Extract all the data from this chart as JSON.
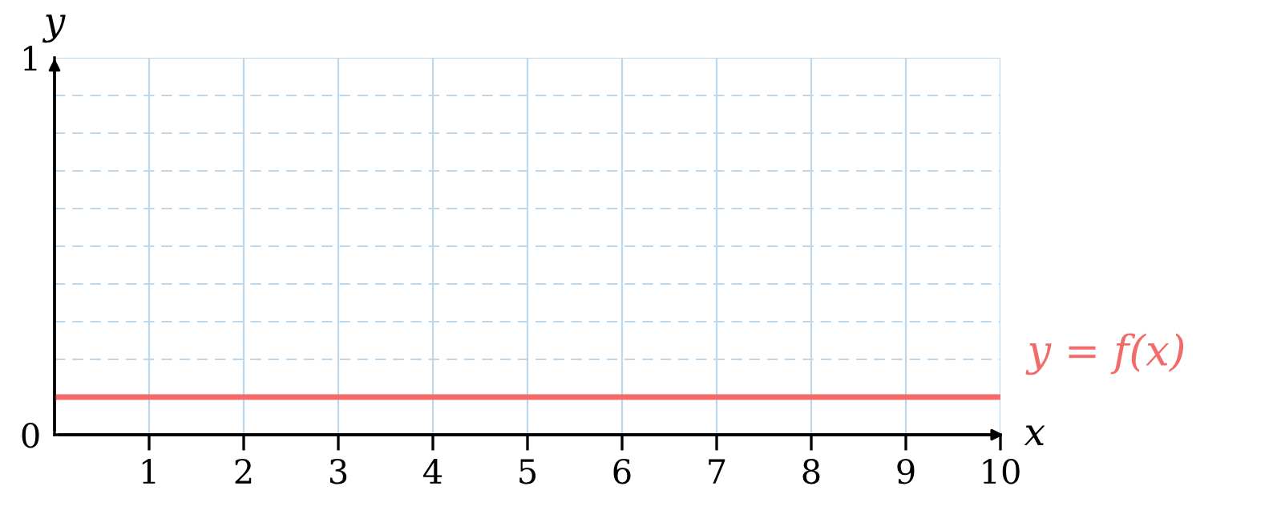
{
  "chart_data": {
    "type": "line",
    "xlabel": "x",
    "ylabel": "y",
    "x": [
      0,
      10
    ],
    "series": [
      {
        "name": "y = f(x)",
        "color": "#f26b6b",
        "values": [
          0.1,
          0.1
        ]
      }
    ],
    "xlim": [
      0,
      10
    ],
    "ylim": [
      0,
      1
    ],
    "xticks": [
      1,
      2,
      3,
      4,
      5,
      6,
      7,
      8,
      9,
      10
    ],
    "yticks": [
      0,
      {
        "value": 0.1,
        "label": null
      },
      {
        "value": 0.2,
        "label": null
      },
      {
        "value": 0.3,
        "label": null
      },
      {
        "value": 0.4,
        "label": null
      },
      {
        "value": 0.5,
        "label": null
      },
      {
        "value": 0.6,
        "label": null
      },
      {
        "value": 0.7,
        "label": null
      },
      {
        "value": 0.8,
        "label": null
      },
      {
        "value": 0.9,
        "label": null
      },
      1
    ],
    "grid": true,
    "legend": false,
    "marker": "none",
    "line_style": "solid"
  }
}
